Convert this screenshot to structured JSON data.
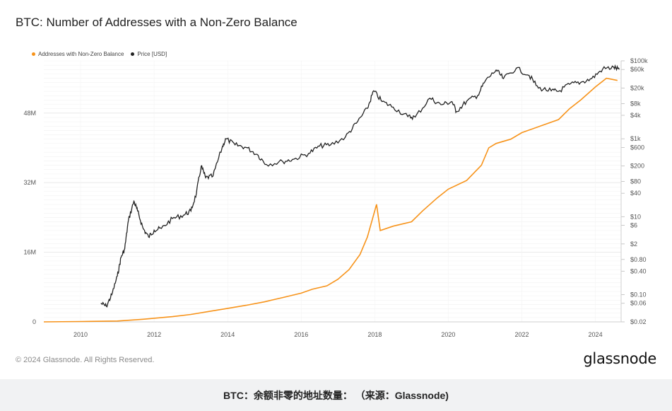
{
  "page": {
    "footer": "© 2024 Glassnode. All Rights Reserved.",
    "brand": "glassnode",
    "caption": "BTC：余额非零的地址数量： （来源：Glassnode)"
  },
  "chart_data": {
    "type": "line",
    "title": "BTC: Number of Addresses with a Non-Zero Balance",
    "legend": [
      {
        "label": "Addresses with Non-Zero Balance",
        "color": "#f7931a"
      },
      {
        "label": "Price [USD]",
        "color": "#222222"
      }
    ],
    "x_axis": {
      "min": 2009.0,
      "max": 2024.7,
      "ticks": [
        "2010",
        "2012",
        "2014",
        "2016",
        "2018",
        "2020",
        "2022",
        "2024"
      ],
      "tick_values": [
        2010,
        2012,
        2014,
        2016,
        2018,
        2020,
        2022,
        2024
      ]
    },
    "y_axis_left": {
      "min": 0,
      "max": 60000000,
      "ticks": [
        "0",
        "16M",
        "32M",
        "48M"
      ],
      "tick_values": [
        0,
        16000000,
        32000000,
        48000000
      ]
    },
    "y_axis_right": {
      "scale": "log",
      "min": 0.02,
      "max": 100000,
      "ticks": [
        "$100k",
        "$60k",
        "$20k",
        "$8k",
        "$4k",
        "$1k",
        "$600",
        "$200",
        "$80",
        "$40",
        "$10",
        "$6",
        "$2",
        "$0.80",
        "$0.40",
        "$0.10",
        "$0.06",
        "$0.02"
      ],
      "tick_values": [
        100000,
        60000,
        20000,
        8000,
        4000,
        1000,
        600,
        200,
        80,
        40,
        10,
        6,
        2,
        0.8,
        0.4,
        0.1,
        0.06,
        0.02
      ]
    },
    "series": [
      {
        "name": "Addresses with Non-Zero Balance",
        "axis": "left",
        "color": "#f7931a",
        "x": [
          2009.0,
          2010.0,
          2011.0,
          2011.7,
          2012.5,
          2013.0,
          2013.5,
          2014.0,
          2014.5,
          2015.0,
          2015.5,
          2016.0,
          2016.3,
          2016.7,
          2017.0,
          2017.3,
          2017.6,
          2017.8,
          2017.95,
          2018.05,
          2018.15,
          2018.5,
          2019.0,
          2019.3,
          2019.7,
          2020.0,
          2020.5,
          2020.9,
          2021.1,
          2021.3,
          2021.7,
          2022.0,
          2022.5,
          2023.0,
          2023.3,
          2023.6,
          2024.0,
          2024.3,
          2024.6
        ],
        "values": [
          0,
          80000,
          200000,
          600000,
          1200000,
          1700000,
          2400000,
          3100000,
          3800000,
          4600000,
          5600000,
          6600000,
          7500000,
          8300000,
          9800000,
          12000000,
          15500000,
          19500000,
          24000000,
          27000000,
          21000000,
          22000000,
          23000000,
          25500000,
          28500000,
          30500000,
          32500000,
          36000000,
          40000000,
          41000000,
          42000000,
          43500000,
          45000000,
          46500000,
          49000000,
          51000000,
          54000000,
          56000000,
          55500000
        ]
      },
      {
        "name": "Price [USD]",
        "axis": "right",
        "color": "#222222",
        "x": [
          2010.55,
          2010.7,
          2010.85,
          2011.0,
          2011.1,
          2011.2,
          2011.3,
          2011.45,
          2011.55,
          2011.7,
          2011.85,
          2012.0,
          2012.2,
          2012.5,
          2012.8,
          2013.0,
          2013.15,
          2013.28,
          2013.4,
          2013.6,
          2013.85,
          2013.95,
          2014.2,
          2014.5,
          2014.8,
          2015.05,
          2015.5,
          2015.8,
          2016.2,
          2016.5,
          2016.8,
          2017.2,
          2017.5,
          2017.8,
          2017.97,
          2018.2,
          2018.5,
          2018.9,
          2019.1,
          2019.5,
          2019.8,
          2020.1,
          2020.22,
          2020.5,
          2020.8,
          2021.0,
          2021.3,
          2021.5,
          2021.85,
          2022.2,
          2022.45,
          2022.8,
          2023.0,
          2023.3,
          2023.6,
          2023.9,
          2024.2,
          2024.5,
          2024.65
        ],
        "values": [
          0.06,
          0.05,
          0.1,
          0.3,
          0.9,
          1.5,
          8,
          25,
          14,
          5,
          3,
          4.5,
          5,
          9,
          11,
          14,
          40,
          200,
          100,
          110,
          600,
          1000,
          700,
          600,
          400,
          220,
          260,
          300,
          420,
          650,
          700,
          1100,
          2500,
          6000,
          17000,
          9000,
          6500,
          3700,
          3600,
          11000,
          7500,
          9000,
          5000,
          9200,
          13000,
          30000,
          58000,
          35000,
          65000,
          42000,
          20000,
          17000,
          16500,
          25000,
          28000,
          35000,
          62000,
          68000,
          60000
        ]
      }
    ]
  }
}
